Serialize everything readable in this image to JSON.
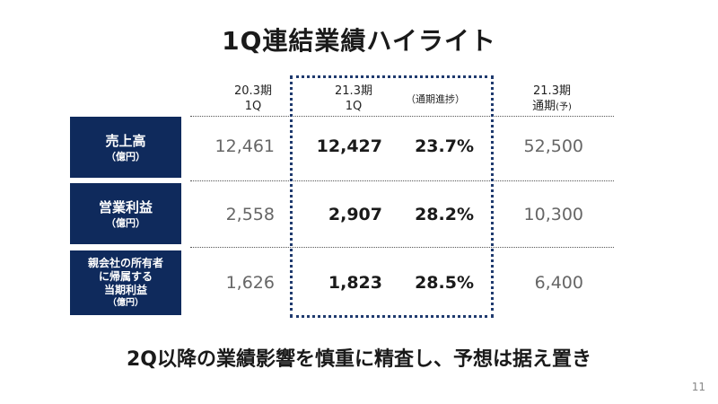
{
  "slide": {
    "title": "1Q連結業績ハイライト",
    "columns": {
      "prev": {
        "line1": "20.3期",
        "line2": "1Q"
      },
      "current": {
        "line1": "21.3期",
        "line2": "1Q"
      },
      "progress": "（通期進捗）",
      "forecast": {
        "line1": "21.3期",
        "line2": "通期",
        "suffix": "(予)"
      }
    },
    "rows": [
      {
        "label_lines": [
          "売上高"
        ],
        "unit": "（億円）",
        "prev": "12,461",
        "current": "12,427",
        "progress": "23.7%",
        "forecast": "52,500"
      },
      {
        "label_lines": [
          "営業利益"
        ],
        "unit": "（億円）",
        "prev": "2,558",
        "current": "2,907",
        "progress": "28.2%",
        "forecast": "10,300"
      },
      {
        "label_lines": [
          "親会社の所有者",
          "に帰属する",
          "当期利益"
        ],
        "unit": "（億円）",
        "prev": "1,626",
        "current": "1,823",
        "progress": "28.5%",
        "forecast": "6,400"
      }
    ],
    "footer_message": "2Q以降の業績影響を慎重に精査し、予想は据え置き",
    "page_number": "11"
  }
}
